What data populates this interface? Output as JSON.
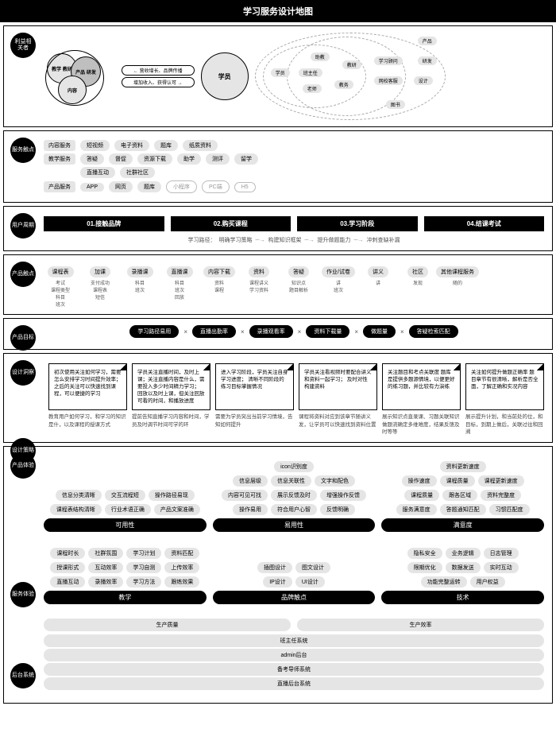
{
  "title": "学习服务设计地图",
  "colors": {
    "black": "#000000",
    "grey": "#e5e5e5",
    "lightText": "#888888"
  },
  "stakeholders": {
    "label": "利益相\n关者",
    "left_circles": [
      "教学\n教研",
      "产品\n研发",
      "内容"
    ],
    "arrow_top": "营收增长、品牌传播",
    "arrow_bottom": "增加收入、获得认可",
    "center": "学员",
    "venn_labels": [
      "学员",
      "助教",
      "班主任",
      "老师",
      "教务",
      "教研",
      "学习顾问",
      "网校客服",
      "研发",
      "设计",
      "图书",
      "产品"
    ]
  },
  "service_touch": {
    "label": "服务触点",
    "rows": [
      {
        "name": "内容服务",
        "items": [
          "短视频",
          "电子资料",
          "题库",
          "纸质资料"
        ]
      },
      {
        "name": "教学服务",
        "items": [
          "答疑",
          "督促",
          "资源下载",
          "助学",
          "测评",
          "留学"
        ]
      },
      {
        "name": "",
        "items": [
          "直播互动",
          "社群社区"
        ]
      },
      {
        "name": "产品服务",
        "items": [
          "APP",
          "网页",
          "题库"
        ],
        "outline": [
          "小程序",
          "PC端",
          "H5"
        ]
      }
    ]
  },
  "user_journey": {
    "label": "用户周期",
    "phases": [
      "01.接触品牌",
      "02.购买课程",
      "03.学习阶段",
      "04.结课考试"
    ],
    "path_label": "学习路径：",
    "path": [
      "明确学习策略",
      "构建知识框架",
      "提升做题能力",
      "冲刺查缺补漏"
    ]
  },
  "product_touch": {
    "label": "产品触点",
    "items": [
      {
        "m": "课程表",
        "s": [
          "考试",
          "课程类型",
          "科目",
          "班次"
        ]
      },
      {
        "m": "加课",
        "s": [
          "支付成功",
          "课程表",
          "短信"
        ]
      },
      {
        "m": "录播课",
        "s": [
          "科目",
          "班次"
        ]
      },
      {
        "m": "直播课",
        "s": [
          "科目",
          "班次",
          "回放"
        ]
      },
      {
        "m": "内容下载",
        "s": [
          "资料",
          "课程"
        ]
      },
      {
        "m": "资料",
        "s": [
          "课程讲义",
          "学习资料"
        ]
      },
      {
        "m": "答疑",
        "s": [
          "知识点",
          "题目解析"
        ]
      },
      {
        "m": "作业/试卷",
        "s": [
          "讲",
          "班次"
        ]
      },
      {
        "m": "讲义",
        "s": [
          "讲"
        ]
      },
      {
        "m": "社区",
        "s": [
          "发现"
        ]
      },
      {
        "m": "其他课程服务",
        "s": [
          "随的"
        ]
      }
    ]
  },
  "product_goals": {
    "label": "产品目标",
    "items": [
      "学习路径易用",
      "直播出勤率",
      "录播观看率",
      "资料下载量",
      "做题量",
      "答疑检索匹配"
    ]
  },
  "design_insight": {
    "label1": "设计洞察",
    "label2": "设计策略",
    "notes": [
      "初次使用关注如何学习，需要怎么安排学习时间提升效率；\n之后的关注可以快速找到课程，可以便捷的学习",
      "学员关注直播时间，及时上课；关注直播内容是什么，需要投入多少时间精力学习；\n回放以及时上课，但关注回放可看的时间，和播放进度",
      "进入学习阶段，学员关注自身学习进度；\n清晰不同阶段的练习目标掌握情况",
      "学员关注看视频时要配合讲义和资料一起学习；\n及时对性构建资料",
      "关注题目和考点关联度\n题库是提供多题源情境，以便更好的练习题，并比较有力演练",
      "关注如何提升做题正确率\n题目章节有很清晰，解析是否全面，了解正确和实况内容"
    ],
    "strategies": [
      "教育用户如何学习，和学习的知识是什，以及课程的授课方式",
      "提前告知直播学习内容和时间，学员及时调节时间可学的环",
      "需要为学员突出当前学习情境，告知如何提升",
      "课程将资料对应到该章节随讲义发，让学员可以快速找到资料位置",
      "展示知识点直录课、习题关联知识\n做题流确定多维难度，结果反馈及时等等",
      "展示提升计划，和当前处的位，和目标，到期上做后，关联过往和回溯"
    ]
  },
  "product_exp": {
    "label": "产品体验",
    "cols": [
      {
        "rows": [
          [
            "信息分类清晰",
            "交互流程短",
            "操作路径易现"
          ],
          [
            "课程表结构清晰",
            "行业术语正确",
            "产品文案准确"
          ]
        ],
        "footer": "可用性"
      },
      {
        "rows": [
          [
            "icon识别度"
          ],
          [
            "信息层级",
            "信息关联性",
            "文字和配色"
          ],
          [
            "内容可见可找",
            "展示反馈及时",
            "增强操作反馈"
          ],
          [
            "操作易用",
            "符合用户心智",
            "反馈明确"
          ]
        ],
        "footer": "易用性"
      },
      {
        "rows": [
          [
            "资料更新速度"
          ],
          [
            "操作速度",
            "课程质量",
            "课程更新速度"
          ],
          [
            "课程质量",
            "跟各区域",
            "资料完整度"
          ],
          [
            "服务满意度",
            "答题通知匹配",
            "习惯匹配度"
          ]
        ],
        "footer": "满意度"
      }
    ]
  },
  "service_exp": {
    "label": "服务体验",
    "cols": [
      {
        "rows": [
          [
            "课程时长",
            "社群氛围",
            "学习计划",
            "资料匹配"
          ],
          [
            "授课形式",
            "互动效率",
            "学习自测",
            "上传效率"
          ],
          [
            "直播互动",
            "录播效率",
            "学习方法",
            "跟练效果"
          ]
        ],
        "footer": "教学"
      },
      {
        "rows": [
          [
            "插图设计",
            "图文设计"
          ],
          [
            "IP设计",
            "UI设计"
          ]
        ],
        "footer": "品牌触点"
      },
      {
        "rows": [
          [
            "隐私安全",
            "业务逻辑",
            "日志管理"
          ],
          [
            "限期优化",
            "数据发送",
            "实时互动"
          ],
          [
            "功能完整运转",
            "用户权益"
          ]
        ],
        "footer": "技术"
      }
    ]
  },
  "backend": {
    "label": "后台系统",
    "split": [
      "生产质量",
      "生产效率"
    ],
    "bars": [
      "班主任系统",
      "admin后台",
      "备考导师系统",
      "直播后台系统"
    ]
  }
}
